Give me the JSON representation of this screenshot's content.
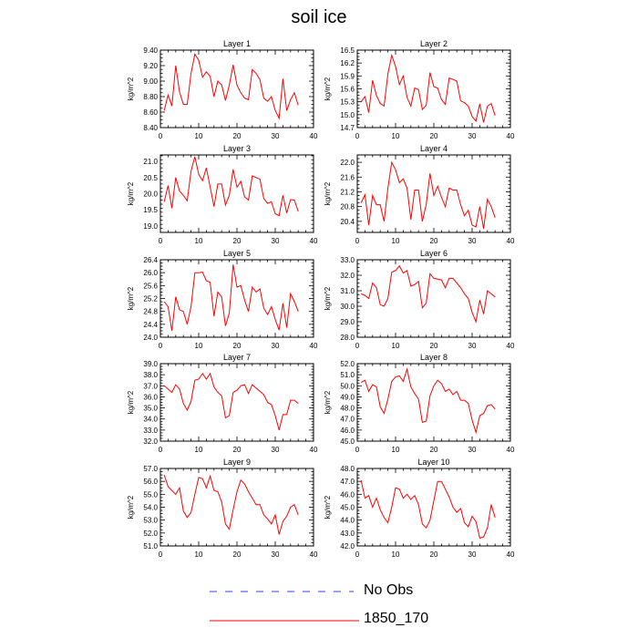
{
  "figure": {
    "title": "soil ice",
    "legend": [
      {
        "label": "No Obs",
        "color": "#3b3bff",
        "style": "dashed"
      },
      {
        "label": "1850_170",
        "color": "#ff0000",
        "style": "solid"
      }
    ]
  },
  "chart_data": [
    {
      "type": "line",
      "title": "Layer 1",
      "ylabel": "kg/m^2",
      "xlim": [
        0,
        40
      ],
      "ylim": [
        8.4,
        9.4
      ],
      "xticks": [
        0,
        10,
        20,
        30,
        40
      ],
      "yticks": [
        "8.40",
        "8.60",
        "8.80",
        "9.00",
        "9.20",
        "9.40"
      ],
      "series": [
        {
          "name": "1850_170",
          "color": "#ff0000",
          "x": [
            1,
            2,
            3,
            4,
            5,
            6,
            7,
            8,
            9,
            10,
            11,
            12,
            13,
            14,
            15,
            16,
            17,
            18,
            19,
            20,
            21,
            22,
            23,
            24,
            25,
            26,
            27,
            28,
            29,
            30,
            31,
            32,
            33,
            34,
            35,
            36
          ],
          "y": [
            8.62,
            8.82,
            8.68,
            9.2,
            8.86,
            8.7,
            8.7,
            9.1,
            9.35,
            9.27,
            9.05,
            9.12,
            9.06,
            8.8,
            9.0,
            8.95,
            8.75,
            8.95,
            9.21,
            8.95,
            8.85,
            8.78,
            8.76,
            9.15,
            9.1,
            9.02,
            8.78,
            8.74,
            8.8,
            8.62,
            8.52,
            9.03,
            8.62,
            8.76,
            8.85,
            8.69
          ]
        }
      ]
    },
    {
      "type": "line",
      "title": "Layer 2",
      "ylabel": "kg/m^2",
      "xlim": [
        0,
        40
      ],
      "ylim": [
        14.7,
        16.5
      ],
      "xticks": [
        0,
        10,
        20,
        30,
        40
      ],
      "yticks": [
        "14.7",
        "15.0",
        "15.3",
        "15.6",
        "15.9",
        "16.2",
        "16.5"
      ],
      "series": [
        {
          "name": "1850_170",
          "color": "#ff0000",
          "x": [
            1,
            2,
            3,
            4,
            5,
            6,
            7,
            8,
            9,
            10,
            11,
            12,
            13,
            14,
            15,
            16,
            17,
            18,
            19,
            20,
            21,
            22,
            23,
            24,
            25,
            26,
            27,
            28,
            29,
            30,
            31,
            32,
            33,
            34,
            35,
            36
          ],
          "y": [
            15.3,
            15.42,
            15.05,
            15.8,
            15.45,
            15.26,
            15.2,
            15.95,
            16.38,
            16.12,
            15.7,
            15.9,
            15.4,
            15.2,
            15.62,
            15.58,
            15.12,
            15.22,
            15.98,
            15.65,
            15.62,
            15.35,
            15.24,
            15.85,
            15.82,
            15.78,
            15.32,
            15.28,
            15.2,
            14.96,
            14.85,
            15.25,
            14.82,
            15.2,
            15.26,
            14.98
          ]
        }
      ]
    },
    {
      "type": "line",
      "title": "Layer 3",
      "ylabel": "kg/m^2",
      "xlim": [
        0,
        40
      ],
      "ylim": [
        18.8,
        21.2
      ],
      "xticks": [
        0,
        10,
        20,
        30,
        40
      ],
      "yticks": [
        "19.0",
        "19.5",
        "20.0",
        "20.5",
        "21.0"
      ],
      "series": [
        {
          "name": "1850_170",
          "color": "#ff0000",
          "x": [
            1,
            2,
            3,
            4,
            5,
            6,
            7,
            8,
            9,
            10,
            11,
            12,
            13,
            14,
            15,
            16,
            17,
            18,
            19,
            20,
            21,
            22,
            23,
            24,
            25,
            26,
            27,
            28,
            29,
            30,
            31,
            32,
            33,
            34,
            35,
            36
          ],
          "y": [
            19.75,
            20.25,
            19.55,
            20.5,
            20.08,
            19.95,
            19.78,
            20.7,
            21.15,
            20.6,
            20.4,
            20.8,
            20.2,
            19.6,
            20.3,
            20.3,
            19.65,
            19.95,
            20.75,
            20.2,
            20.38,
            19.9,
            19.8,
            20.55,
            20.5,
            20.45,
            19.85,
            19.7,
            19.75,
            19.38,
            19.32,
            19.95,
            19.4,
            19.82,
            19.8,
            19.45
          ]
        }
      ]
    },
    {
      "type": "line",
      "title": "Layer 4",
      "ylabel": "kg/m^2",
      "xlim": [
        0,
        40
      ],
      "ylim": [
        20.1,
        22.2
      ],
      "xticks": [
        0,
        10,
        20,
        30,
        40
      ],
      "yticks": [
        "20.4",
        "20.8",
        "21.2",
        "21.6",
        "22.0"
      ],
      "series": [
        {
          "name": "1850_170",
          "color": "#ff0000",
          "x": [
            1,
            2,
            3,
            4,
            5,
            6,
            7,
            8,
            9,
            10,
            11,
            12,
            13,
            14,
            15,
            16,
            17,
            18,
            19,
            20,
            21,
            22,
            23,
            24,
            25,
            26,
            27,
            28,
            29,
            30,
            31,
            32,
            33,
            34,
            35,
            36
          ],
          "y": [
            20.9,
            21.12,
            20.3,
            21.1,
            20.85,
            20.85,
            20.4,
            21.3,
            22.0,
            21.8,
            21.45,
            21.55,
            21.3,
            20.45,
            21.25,
            21.25,
            20.4,
            20.85,
            21.7,
            21.1,
            21.35,
            21.05,
            20.8,
            21.3,
            21.25,
            21.25,
            20.85,
            20.55,
            20.7,
            20.3,
            20.25,
            20.8,
            20.2,
            21.0,
            20.8,
            20.5
          ]
        }
      ]
    },
    {
      "type": "line",
      "title": "Layer 5",
      "ylabel": "kg/m^2",
      "xlim": [
        0,
        40
      ],
      "ylim": [
        24.0,
        26.4
      ],
      "xticks": [
        0,
        10,
        20,
        30,
        40
      ],
      "yticks": [
        "24.0",
        "24.4",
        "24.8",
        "25.2",
        "25.6",
        "26.0",
        "26.4"
      ],
      "series": [
        {
          "name": "1850_170",
          "color": "#ff0000",
          "x": [
            1,
            2,
            3,
            4,
            5,
            6,
            7,
            8,
            9,
            10,
            11,
            12,
            13,
            14,
            15,
            16,
            17,
            18,
            19,
            20,
            21,
            22,
            23,
            24,
            25,
            26,
            27,
            28,
            29,
            30,
            31,
            32,
            33,
            34,
            35,
            36
          ],
          "y": [
            25.1,
            24.95,
            24.2,
            25.25,
            24.85,
            24.8,
            24.4,
            24.95,
            26.0,
            26.0,
            26.02,
            25.75,
            25.7,
            24.65,
            25.4,
            25.25,
            24.35,
            24.75,
            26.25,
            25.55,
            25.6,
            25.15,
            24.8,
            25.55,
            25.4,
            25.5,
            24.9,
            24.7,
            24.95,
            24.55,
            24.22,
            25.05,
            24.3,
            25.35,
            25.1,
            24.8
          ]
        }
      ]
    },
    {
      "type": "line",
      "title": "Layer 6",
      "ylabel": "kg/m^2",
      "xlim": [
        0,
        40
      ],
      "ylim": [
        28.0,
        33.0
      ],
      "xticks": [
        0,
        10,
        20,
        30,
        40
      ],
      "yticks": [
        "28.0",
        "29.0",
        "30.0",
        "31.0",
        "32.0",
        "33.0"
      ],
      "series": [
        {
          "name": "1850_170",
          "color": "#ff0000",
          "x": [
            1,
            2,
            3,
            4,
            5,
            6,
            7,
            8,
            9,
            10,
            11,
            12,
            13,
            14,
            15,
            16,
            17,
            18,
            19,
            20,
            21,
            22,
            23,
            24,
            25,
            26,
            27,
            28,
            29,
            30,
            31,
            32,
            33,
            34,
            35,
            36
          ],
          "y": [
            30.8,
            30.7,
            30.5,
            31.5,
            31.2,
            30.1,
            30.0,
            30.5,
            32.2,
            32.3,
            32.6,
            32.15,
            32.3,
            31.3,
            31.4,
            31.6,
            29.9,
            30.2,
            32.1,
            31.8,
            31.75,
            31.7,
            31.2,
            31.8,
            31.8,
            31.5,
            31.2,
            30.8,
            30.5,
            29.6,
            29.0,
            30.4,
            29.5,
            31.0,
            30.8,
            30.6
          ]
        }
      ]
    },
    {
      "type": "line",
      "title": "Layer 7",
      "ylabel": "kg/m^2",
      "xlim": [
        0,
        40
      ],
      "ylim": [
        32.0,
        39.0
      ],
      "xticks": [
        0,
        10,
        20,
        30,
        40
      ],
      "yticks": [
        "32.0",
        "33.0",
        "34.0",
        "35.0",
        "36.0",
        "37.0",
        "38.0",
        "39.0"
      ],
      "series": [
        {
          "name": "1850_170",
          "color": "#ff0000",
          "x": [
            1,
            2,
            3,
            4,
            5,
            6,
            7,
            8,
            9,
            10,
            11,
            12,
            13,
            14,
            15,
            16,
            17,
            18,
            19,
            20,
            21,
            22,
            23,
            24,
            25,
            26,
            27,
            28,
            29,
            30,
            31,
            32,
            33,
            34,
            35,
            36
          ],
          "y": [
            37.0,
            36.7,
            36.4,
            37.1,
            36.7,
            35.4,
            34.8,
            35.6,
            37.5,
            37.6,
            38.1,
            37.6,
            38.1,
            36.9,
            36.4,
            36.1,
            34.1,
            34.3,
            36.4,
            36.6,
            37.0,
            37.1,
            36.3,
            37.1,
            36.8,
            36.5,
            36.2,
            35.5,
            35.3,
            34.3,
            33.0,
            34.4,
            34.4,
            35.7,
            35.7,
            35.4
          ]
        }
      ]
    },
    {
      "type": "line",
      "title": "Layer 8",
      "ylabel": "kg/m^2",
      "xlim": [
        0,
        40
      ],
      "ylim": [
        45.0,
        52.0
      ],
      "xticks": [
        0,
        10,
        20,
        30,
        40
      ],
      "yticks": [
        "45.0",
        "46.0",
        "47.0",
        "48.0",
        "49.0",
        "50.0",
        "51.0",
        "52.0"
      ],
      "series": [
        {
          "name": "1850_170",
          "color": "#ff0000",
          "x": [
            1,
            2,
            3,
            4,
            5,
            6,
            7,
            8,
            9,
            10,
            11,
            12,
            13,
            14,
            15,
            16,
            17,
            18,
            19,
            20,
            21,
            22,
            23,
            24,
            25,
            26,
            27,
            28,
            29,
            30,
            31,
            32,
            33,
            34,
            35,
            36
          ],
          "y": [
            50.3,
            50.5,
            49.5,
            50.1,
            49.9,
            48.1,
            47.5,
            48.8,
            50.4,
            50.8,
            50.9,
            50.4,
            51.5,
            49.9,
            49.3,
            48.8,
            46.7,
            46.8,
            49.1,
            50.0,
            50.5,
            50.2,
            49.5,
            49.7,
            49.2,
            49.5,
            48.7,
            48.7,
            48.4,
            46.9,
            45.8,
            47.3,
            47.5,
            48.2,
            48.3,
            47.9
          ]
        }
      ]
    },
    {
      "type": "line",
      "title": "Layer 9",
      "ylabel": "kg/m^2",
      "xlim": [
        0,
        40
      ],
      "ylim": [
        51.0,
        57.0
      ],
      "xticks": [
        0,
        10,
        20,
        30,
        40
      ],
      "yticks": [
        "51.0",
        "52.0",
        "53.0",
        "54.0",
        "55.0",
        "56.0",
        "57.0"
      ],
      "series": [
        {
          "name": "1850_170",
          "color": "#ff0000",
          "x": [
            1,
            2,
            3,
            4,
            5,
            6,
            7,
            8,
            9,
            10,
            11,
            12,
            13,
            14,
            15,
            16,
            17,
            18,
            19,
            20,
            21,
            22,
            23,
            24,
            25,
            26,
            27,
            28,
            29,
            30,
            31,
            32,
            33,
            34,
            35,
            36
          ],
          "y": [
            56.5,
            55.6,
            55.3,
            55.0,
            55.5,
            53.7,
            53.2,
            53.6,
            55.0,
            56.3,
            56.2,
            55.5,
            56.4,
            55.3,
            55.2,
            54.4,
            52.7,
            52.3,
            53.8,
            55.2,
            56.1,
            55.8,
            55.2,
            54.7,
            54.2,
            54.2,
            53.4,
            53.1,
            52.7,
            53.4,
            51.9,
            52.9,
            53.3,
            54.0,
            54.2,
            53.4
          ]
        }
      ]
    },
    {
      "type": "line",
      "title": "Layer 10",
      "ylabel": "kg/m^2",
      "xlim": [
        0,
        40
      ],
      "ylim": [
        42.0,
        48.0
      ],
      "xticks": [
        0,
        10,
        20,
        30,
        40
      ],
      "yticks": [
        "42.0",
        "43.0",
        "44.0",
        "45.0",
        "46.0",
        "47.0",
        "48.0"
      ],
      "series": [
        {
          "name": "1850_170",
          "color": "#ff0000",
          "x": [
            1,
            2,
            3,
            4,
            5,
            6,
            7,
            8,
            9,
            10,
            11,
            12,
            13,
            14,
            15,
            16,
            17,
            18,
            19,
            20,
            21,
            22,
            23,
            24,
            25,
            26,
            27,
            28,
            29,
            30,
            31,
            32,
            33,
            34,
            35,
            36
          ],
          "y": [
            47.1,
            45.7,
            45.9,
            45.0,
            45.7,
            44.8,
            44.2,
            43.8,
            45.0,
            46.5,
            46.4,
            45.7,
            46.0,
            45.6,
            45.9,
            45.2,
            43.7,
            43.4,
            44.0,
            45.5,
            47.0,
            47.0,
            46.4,
            45.8,
            45.0,
            44.6,
            44.9,
            43.8,
            43.5,
            44.3,
            43.9,
            42.6,
            42.7,
            43.4,
            45.2,
            44.2
          ]
        }
      ]
    }
  ]
}
